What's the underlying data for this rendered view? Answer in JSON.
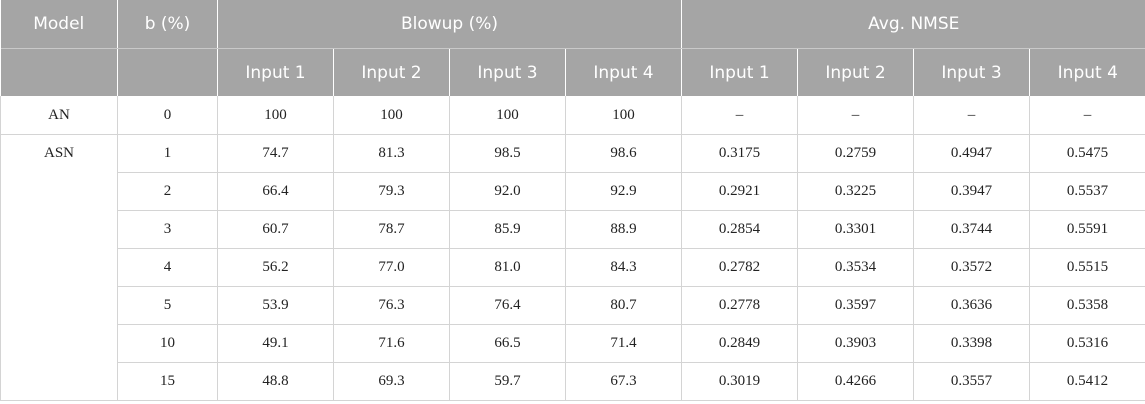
{
  "header": {
    "model": "Model",
    "b": "b (%)",
    "blowup": "Blowup (%)",
    "nmse": "Avg. NMSE",
    "inputs": [
      "Input 1",
      "Input 2",
      "Input 3",
      "Input 4"
    ]
  },
  "rows": {
    "an": {
      "model": "AN",
      "b": "0",
      "blowup": [
        "100",
        "100",
        "100",
        "100"
      ],
      "nmse": [
        "–",
        "–",
        "–",
        "–"
      ]
    },
    "asn": {
      "model": "ASN",
      "data": [
        {
          "b": "1",
          "blowup": [
            "74.7",
            "81.3",
            "98.5",
            "98.6"
          ],
          "nmse": [
            "0.3175",
            "0.2759",
            "0.4947",
            "0.5475"
          ]
        },
        {
          "b": "2",
          "blowup": [
            "66.4",
            "79.3",
            "92.0",
            "92.9"
          ],
          "nmse": [
            "0.2921",
            "0.3225",
            "0.3947",
            "0.5537"
          ]
        },
        {
          "b": "3",
          "blowup": [
            "60.7",
            "78.7",
            "85.9",
            "88.9"
          ],
          "nmse": [
            "0.2854",
            "0.3301",
            "0.3744",
            "0.5591"
          ]
        },
        {
          "b": "4",
          "blowup": [
            "56.2",
            "77.0",
            "81.0",
            "84.3"
          ],
          "nmse": [
            "0.2782",
            "0.3534",
            "0.3572",
            "0.5515"
          ]
        },
        {
          "b": "5",
          "blowup": [
            "53.9",
            "76.3",
            "76.4",
            "80.7"
          ],
          "nmse": [
            "0.2778",
            "0.3597",
            "0.3636",
            "0.5358"
          ]
        },
        {
          "b": "10",
          "blowup": [
            "49.1",
            "71.6",
            "66.5",
            "71.4"
          ],
          "nmse": [
            "0.2849",
            "0.3903",
            "0.3398",
            "0.5316"
          ]
        },
        {
          "b": "15",
          "blowup": [
            "48.8",
            "69.3",
            "59.7",
            "67.3"
          ],
          "nmse": [
            "0.3019",
            "0.4266",
            "0.3557",
            "0.5412"
          ]
        }
      ]
    }
  }
}
